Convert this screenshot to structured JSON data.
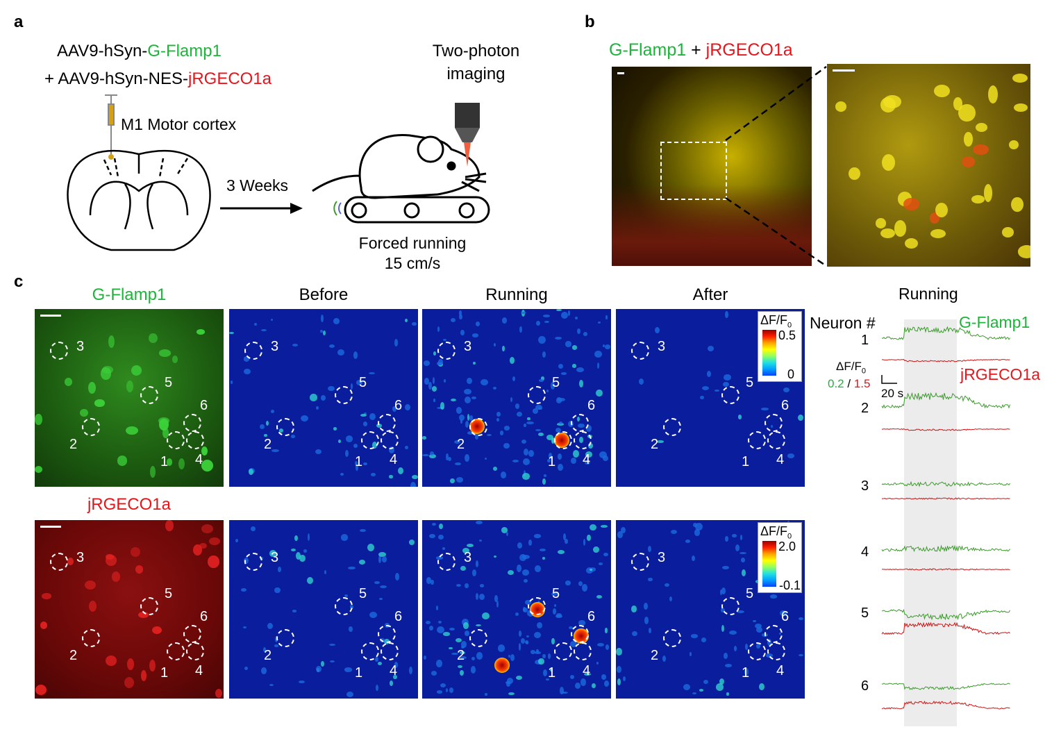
{
  "panel_labels": [
    "a",
    "b",
    "c"
  ],
  "a": {
    "virus_line1_prefix": "AAV9-hSyn-",
    "virus_line1_sensor": "G-Flamp1",
    "virus_line2_prefix": "+ AAV9-hSyn-NES-",
    "virus_line2_sensor": "jRGECO1a",
    "region": "M1 Motor cortex",
    "delay": "3 Weeks",
    "imaging_line1": "Two-photon",
    "imaging_line2": "imaging",
    "running_line1": "Forced running",
    "running_line2": "15 cm/s"
  },
  "b": {
    "title_green": "G-Flamp1",
    "title_plus": "+",
    "title_red": "jRGECO1a"
  },
  "c": {
    "col_titles": [
      "G-Flamp1",
      "Before",
      "Running",
      "After"
    ],
    "row2_title": "jRGECO1a",
    "neuron_ids": [
      "1",
      "2",
      "3",
      "4",
      "5",
      "6"
    ],
    "cbar_top": {
      "label": "ΔF/F",
      "sub": "0",
      "max": "0.5",
      "min": "0"
    },
    "cbar_bottom": {
      "label": "ΔF/F",
      "sub": "0",
      "max": "2.0",
      "min": "-0.1"
    },
    "traces_title": "Running",
    "neuron_header": "Neuron #",
    "legend_green": "G-Flamp1",
    "legend_red": "jRGECO1a",
    "scale_label": "ΔF/F",
    "scale_sub": "0",
    "scale_green": "0.2",
    "scale_sep": "/",
    "scale_red": "1.5",
    "scale_time": "20 s"
  },
  "colors": {
    "green": "#1db43a",
    "red": "#e8141a",
    "trace_green": "#3a9a2a",
    "trace_red": "#d01010",
    "running_band": "#ececec",
    "heat_bg": "#0a1d9c"
  }
}
